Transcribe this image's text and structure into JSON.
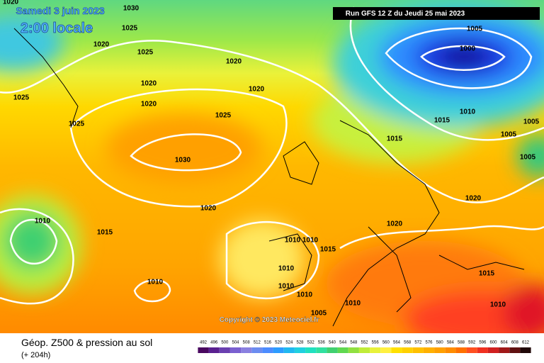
{
  "header": {
    "date": "Samedi 3 juin 2023",
    "time": "2:00 locale"
  },
  "run": "Run GFS 12 Z du Jeudi 25 mai 2023",
  "copyright": "Copyright © 2023 Meteociel.fr",
  "legend": {
    "title": "Géop. Z500 & pression au sol",
    "subtitle": "(+ 204h)",
    "scale": [
      492,
      496,
      500,
      504,
      508,
      512,
      516,
      520,
      524,
      528,
      532,
      536,
      540,
      544,
      548,
      552,
      556,
      560,
      564,
      568,
      572,
      576,
      580,
      584,
      588,
      592,
      596,
      600,
      604,
      608,
      612
    ]
  },
  "isobar_labels": [
    1020,
    1030,
    1025,
    1020,
    1025,
    1020,
    1020,
    1020,
    1020,
    1025,
    1025,
    1025,
    1030,
    1020,
    1010,
    1015,
    1010,
    1010,
    1015,
    1010,
    1010,
    1010,
    1010,
    1005,
    1000,
    1010,
    1015,
    1005,
    1005,
    1005,
    1015,
    1020,
    1020,
    1015,
    1010,
    1010,
    1005
  ]
}
